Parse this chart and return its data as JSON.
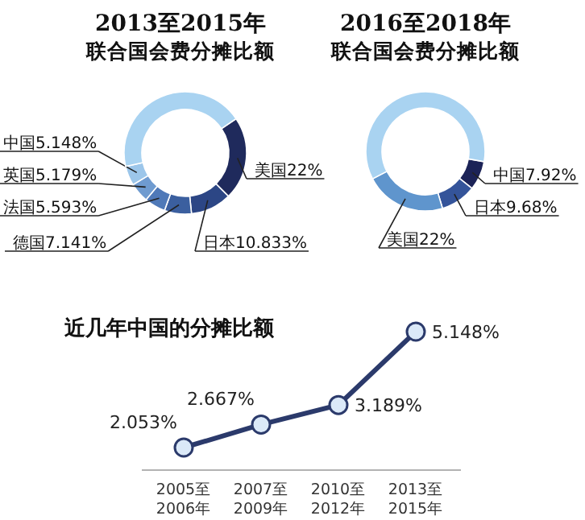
{
  "chart_data": [
    {
      "type": "donut",
      "title": "2013至2015年",
      "subtitle": "联合国会费分摊比额",
      "categories": [
        "美国",
        "日本",
        "德国",
        "法国",
        "英国",
        "中国",
        null
      ],
      "values": [
        22,
        10.833,
        7.141,
        5.593,
        5.179,
        5.148,
        44.106
      ],
      "value_labels": [
        "22%",
        "10.833%",
        "7.141%",
        "5.593%",
        "5.179%",
        "5.148%",
        null
      ],
      "colors": [
        "#1f2a5c",
        "#2c4685",
        "#3b5f9f",
        "#4f79b8",
        "#6f9bd0",
        "#9cc6ea",
        "#a9d3f1"
      ]
    },
    {
      "type": "donut",
      "title": "2016至2018年",
      "subtitle": "联合国会费分摊比额",
      "categories": [
        "中国",
        "日本",
        "美国",
        null
      ],
      "values": [
        7.92,
        9.68,
        22,
        60.4
      ],
      "value_labels": [
        "7.92%",
        "9.68%",
        "22%",
        null
      ],
      "colors": [
        "#1c2357",
        "#34549a",
        "#5f95cd",
        "#a9d3f1"
      ]
    },
    {
      "type": "line",
      "title": "近几年中国的分摊比额",
      "categories": [
        "2005至\n2006年",
        "2007至\n2009年",
        "2010至\n2012年",
        "2013至\n2015年"
      ],
      "values": [
        2.053,
        2.667,
        3.189,
        5.148
      ],
      "value_labels": [
        "2.053%",
        "2.667%",
        "3.189%",
        "5.148%"
      ],
      "color": "#2b3a6b",
      "marker": "circle"
    }
  ]
}
